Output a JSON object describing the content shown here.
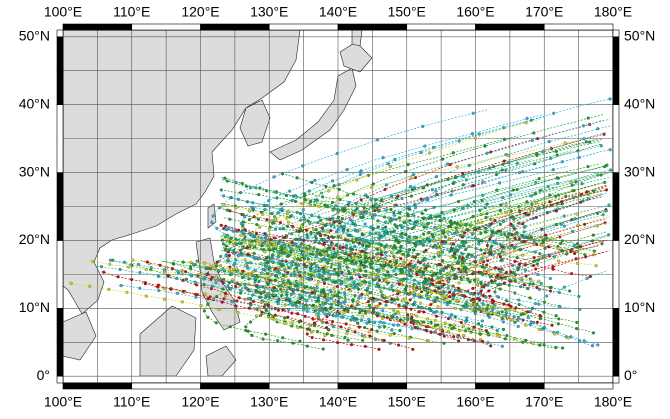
{
  "map": {
    "lon_range": [
      100,
      180
    ],
    "lat_range": [
      -1,
      51
    ],
    "lon_ticks": [
      {
        "value": 100,
        "label": "100°E"
      },
      {
        "value": 110,
        "label": "110°E"
      },
      {
        "value": 120,
        "label": "120°E"
      },
      {
        "value": 130,
        "label": "130°E"
      },
      {
        "value": 140,
        "label": "140°E"
      },
      {
        "value": 150,
        "label": "150°E"
      },
      {
        "value": 160,
        "label": "160°E"
      },
      {
        "value": 170,
        "label": "170°E"
      },
      {
        "value": 180,
        "label": "180°E"
      }
    ],
    "lat_ticks": [
      {
        "value": 0,
        "label": "0°"
      },
      {
        "value": 10,
        "label": "10°N"
      },
      {
        "value": 20,
        "label": "20°N"
      },
      {
        "value": 30,
        "label": "30°N"
      },
      {
        "value": 40,
        "label": "40°N"
      },
      {
        "value": 50,
        "label": "50°N"
      }
    ]
  }
}
